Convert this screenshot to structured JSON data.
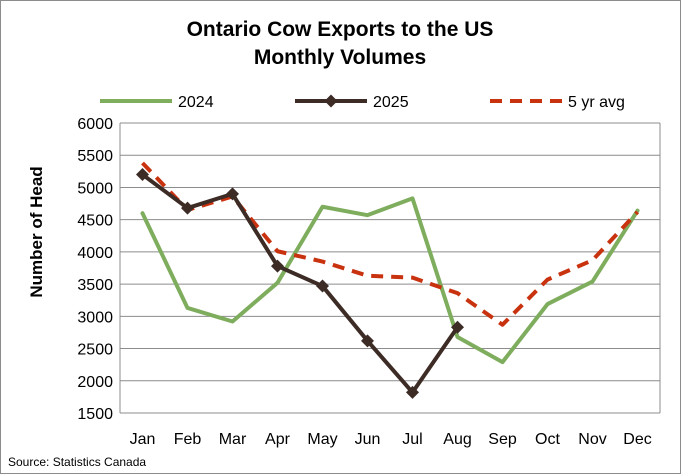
{
  "chart_data": {
    "type": "line",
    "title_line1": "Ontario Cow Exports to the US",
    "title_line2": "Monthly Volumes",
    "ylabel": "Number of Head",
    "xlabel": "",
    "source": "Source: Statistics Canada",
    "categories": [
      "Jan",
      "Feb",
      "Mar",
      "Apr",
      "May",
      "Jun",
      "Jul",
      "Aug",
      "Sep",
      "Oct",
      "Nov",
      "Dec"
    ],
    "ylim": [
      1500,
      6000
    ],
    "yticks": [
      1500,
      2000,
      2500,
      3000,
      3500,
      4000,
      4500,
      5000,
      5500,
      6000
    ],
    "grid": true,
    "legend_position": "top",
    "series": [
      {
        "name": "2024",
        "color": "#7fad5e",
        "style": "solid",
        "marker": "none",
        "values": [
          4600,
          3130,
          2920,
          3520,
          4700,
          4570,
          4830,
          2680,
          2290,
          3190,
          3540,
          4640
        ]
      },
      {
        "name": "2025",
        "color": "#3d2b25",
        "style": "solid",
        "marker": "diamond",
        "values": [
          5200,
          4680,
          4900,
          3780,
          3470,
          2620,
          1820,
          2830,
          null,
          null,
          null,
          null
        ]
      },
      {
        "name": "5 yr avg",
        "color": "#c9320f",
        "style": "dashed",
        "marker": "none",
        "values": [
          5380,
          4650,
          4860,
          4010,
          3850,
          3630,
          3600,
          3360,
          2870,
          3570,
          3870,
          4620
        ]
      }
    ]
  }
}
